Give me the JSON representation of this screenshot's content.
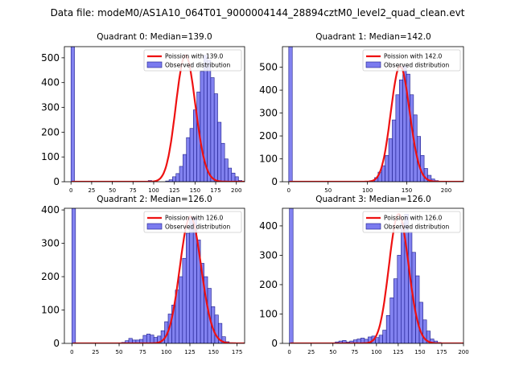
{
  "suptitle": "Data file: modeM0/AS1A10_064T01_9000004144_28894cztM0_level2_quad_clean.evt",
  "colors": {
    "hist_fill": "#7b7bef",
    "hist_edge": "#1a1a8a",
    "fit_line": "#ee1111"
  },
  "chart_data": [
    {
      "type": "bar",
      "title": "Quadrant 0: Median=139.0",
      "median": 139.0,
      "xlim": [
        -8,
        210
      ],
      "ylim": [
        0,
        545
      ],
      "xticks": [
        0,
        25,
        50,
        75,
        100,
        125,
        150,
        175,
        200
      ],
      "yticks": [
        0,
        100,
        200,
        300,
        400,
        500
      ],
      "legend": {
        "line": "Poission with 139.0",
        "bar": "Observed distribution"
      },
      "spike": {
        "x": 0,
        "width": 4.2,
        "value": 545
      },
      "bin_start": 85,
      "bin_width": 4.2,
      "values": [
        0,
        0,
        5,
        0,
        0,
        0,
        0,
        3,
        8,
        20,
        33,
        62,
        110,
        178,
        215,
        290,
        362,
        445,
        510,
        490,
        420,
        355,
        240,
        155,
        92,
        55,
        35,
        20,
        5,
        0,
        0,
        0,
        0,
        0,
        0
      ]
    },
    {
      "type": "bar",
      "title": "Quadrant 1: Median=142.0",
      "median": 142.0,
      "xlim": [
        -8,
        222
      ],
      "ylim": [
        0,
        590
      ],
      "xticks": [
        0,
        50,
        100,
        150,
        200
      ],
      "yticks": [
        0,
        100,
        200,
        300,
        400,
        500
      ],
      "legend": {
        "line": "Poission with 142.0",
        "bar": "Observed distribution"
      },
      "spike": {
        "x": 0,
        "width": 4.5,
        "value": 590
      },
      "bin_start": 100,
      "bin_width": 4.5,
      "values": [
        2,
        5,
        18,
        42,
        70,
        115,
        188,
        270,
        380,
        445,
        505,
        470,
        380,
        292,
        198,
        115,
        58,
        28,
        12,
        5,
        2,
        1,
        0,
        0,
        0
      ]
    },
    {
      "type": "bar",
      "title": "Quadrant 2: Median=126.0",
      "median": 126.0,
      "xlim": [
        -8,
        183
      ],
      "ylim": [
        0,
        405
      ],
      "xticks": [
        0,
        25,
        50,
        75,
        100,
        125,
        150,
        175
      ],
      "yticks": [
        0,
        100,
        200,
        300,
        400
      ],
      "legend": {
        "line": "Poission with 126.0",
        "bar": "Observed distribution"
      },
      "spike": {
        "x": 0,
        "width": 3.8,
        "value": 405
      },
      "bin_start": 45,
      "bin_width": 3.8,
      "values": [
        0,
        0,
        3,
        8,
        15,
        10,
        10,
        12,
        24,
        28,
        25,
        18,
        22,
        38,
        65,
        88,
        115,
        160,
        200,
        255,
        330,
        380,
        375,
        310,
        240,
        200,
        165,
        110,
        85,
        60,
        20,
        5,
        2,
        0
      ]
    },
    {
      "type": "bar",
      "title": "Quadrant 3: Median=126.0",
      "median": 126.0,
      "xlim": [
        -8,
        200
      ],
      "ylim": [
        0,
        460
      ],
      "xticks": [
        0,
        25,
        50,
        75,
        100,
        125,
        150,
        175,
        200
      ],
      "yticks": [
        0,
        100,
        200,
        300,
        400
      ],
      "legend": {
        "line": "Poission with 126.0",
        "bar": "Observed distribution"
      },
      "spike": {
        "x": 0,
        "width": 4.2,
        "value": 460
      },
      "bin_start": 40,
      "bin_width": 4.2,
      "values": [
        0,
        0,
        2,
        5,
        8,
        10,
        5,
        8,
        12,
        15,
        18,
        14,
        22,
        25,
        20,
        28,
        45,
        95,
        155,
        220,
        300,
        410,
        440,
        380,
        310,
        230,
        140,
        80,
        42,
        15,
        8,
        3,
        0,
        0,
        0,
        0,
        0,
        0,
        0,
        0
      ]
    }
  ]
}
